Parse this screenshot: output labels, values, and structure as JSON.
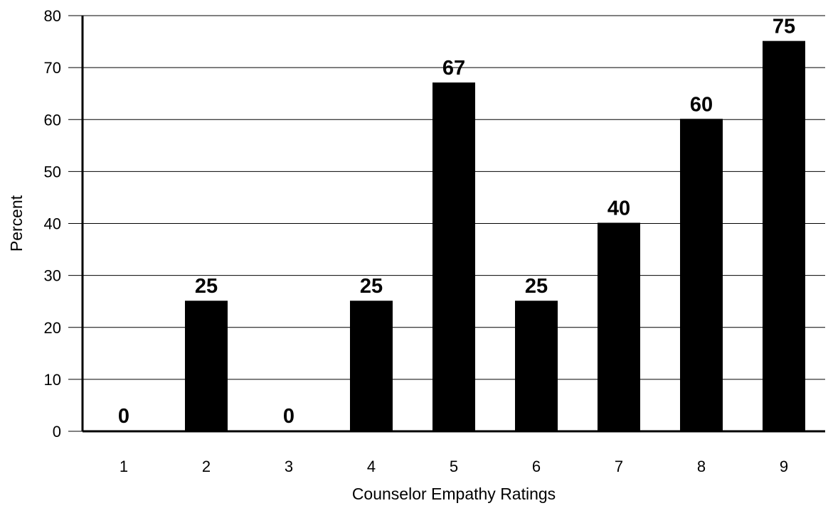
{
  "chart_data": {
    "type": "bar",
    "title": "",
    "xlabel": "Counselor Empathy Ratings",
    "ylabel": "Percent",
    "categories": [
      "1",
      "2",
      "3",
      "4",
      "5",
      "6",
      "7",
      "8",
      "9"
    ],
    "values": [
      0,
      25,
      0,
      25,
      67,
      25,
      40,
      60,
      75
    ],
    "data_labels": [
      "0",
      "25",
      "0",
      "25",
      "67",
      "25",
      "40",
      "60",
      "75"
    ],
    "ylim": [
      0,
      80
    ],
    "yticks": [
      0,
      10,
      20,
      30,
      40,
      50,
      60,
      70,
      80
    ],
    "ytick_labels": [
      "0",
      "10",
      "20",
      "30",
      "40",
      "50",
      "60",
      "70",
      "80"
    ],
    "grid": "horizontal",
    "legend": "none",
    "bar_color": "#000000"
  }
}
